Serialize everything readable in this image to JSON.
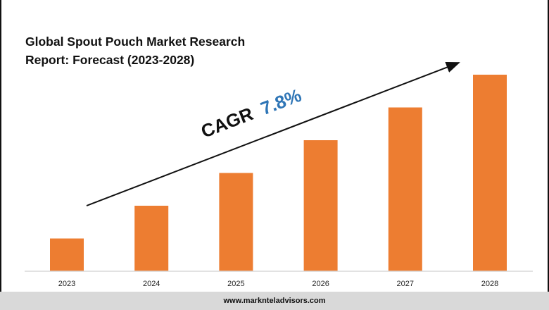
{
  "title_lines": [
    "Global Spout Pouch Market Research",
    "Report: Forecast (2023-2028)"
  ],
  "cagr": {
    "label": "CAGR",
    "value": "7.8%"
  },
  "footer": {
    "url": "www.marknteladvisors.com"
  },
  "colors": {
    "bar": "#ed7d31",
    "cagr_value": "#2e75b6",
    "axis": "#d9d9d9",
    "footer_bg": "#d9d9d9"
  },
  "chart_data": {
    "type": "bar",
    "categories": [
      "2023",
      "2024",
      "2025",
      "2026",
      "2027",
      "2028"
    ],
    "values": [
      1.0,
      2.0,
      3.0,
      4.0,
      5.0,
      6.0
    ],
    "title": "Global Spout Pouch Market Research Report: Forecast (2023-2028)",
    "xlabel": "",
    "ylabel": "",
    "ylim": [
      0,
      6.0
    ],
    "grid": false,
    "legend": "none",
    "annotations": [
      "CAGR 7.8%"
    ]
  }
}
